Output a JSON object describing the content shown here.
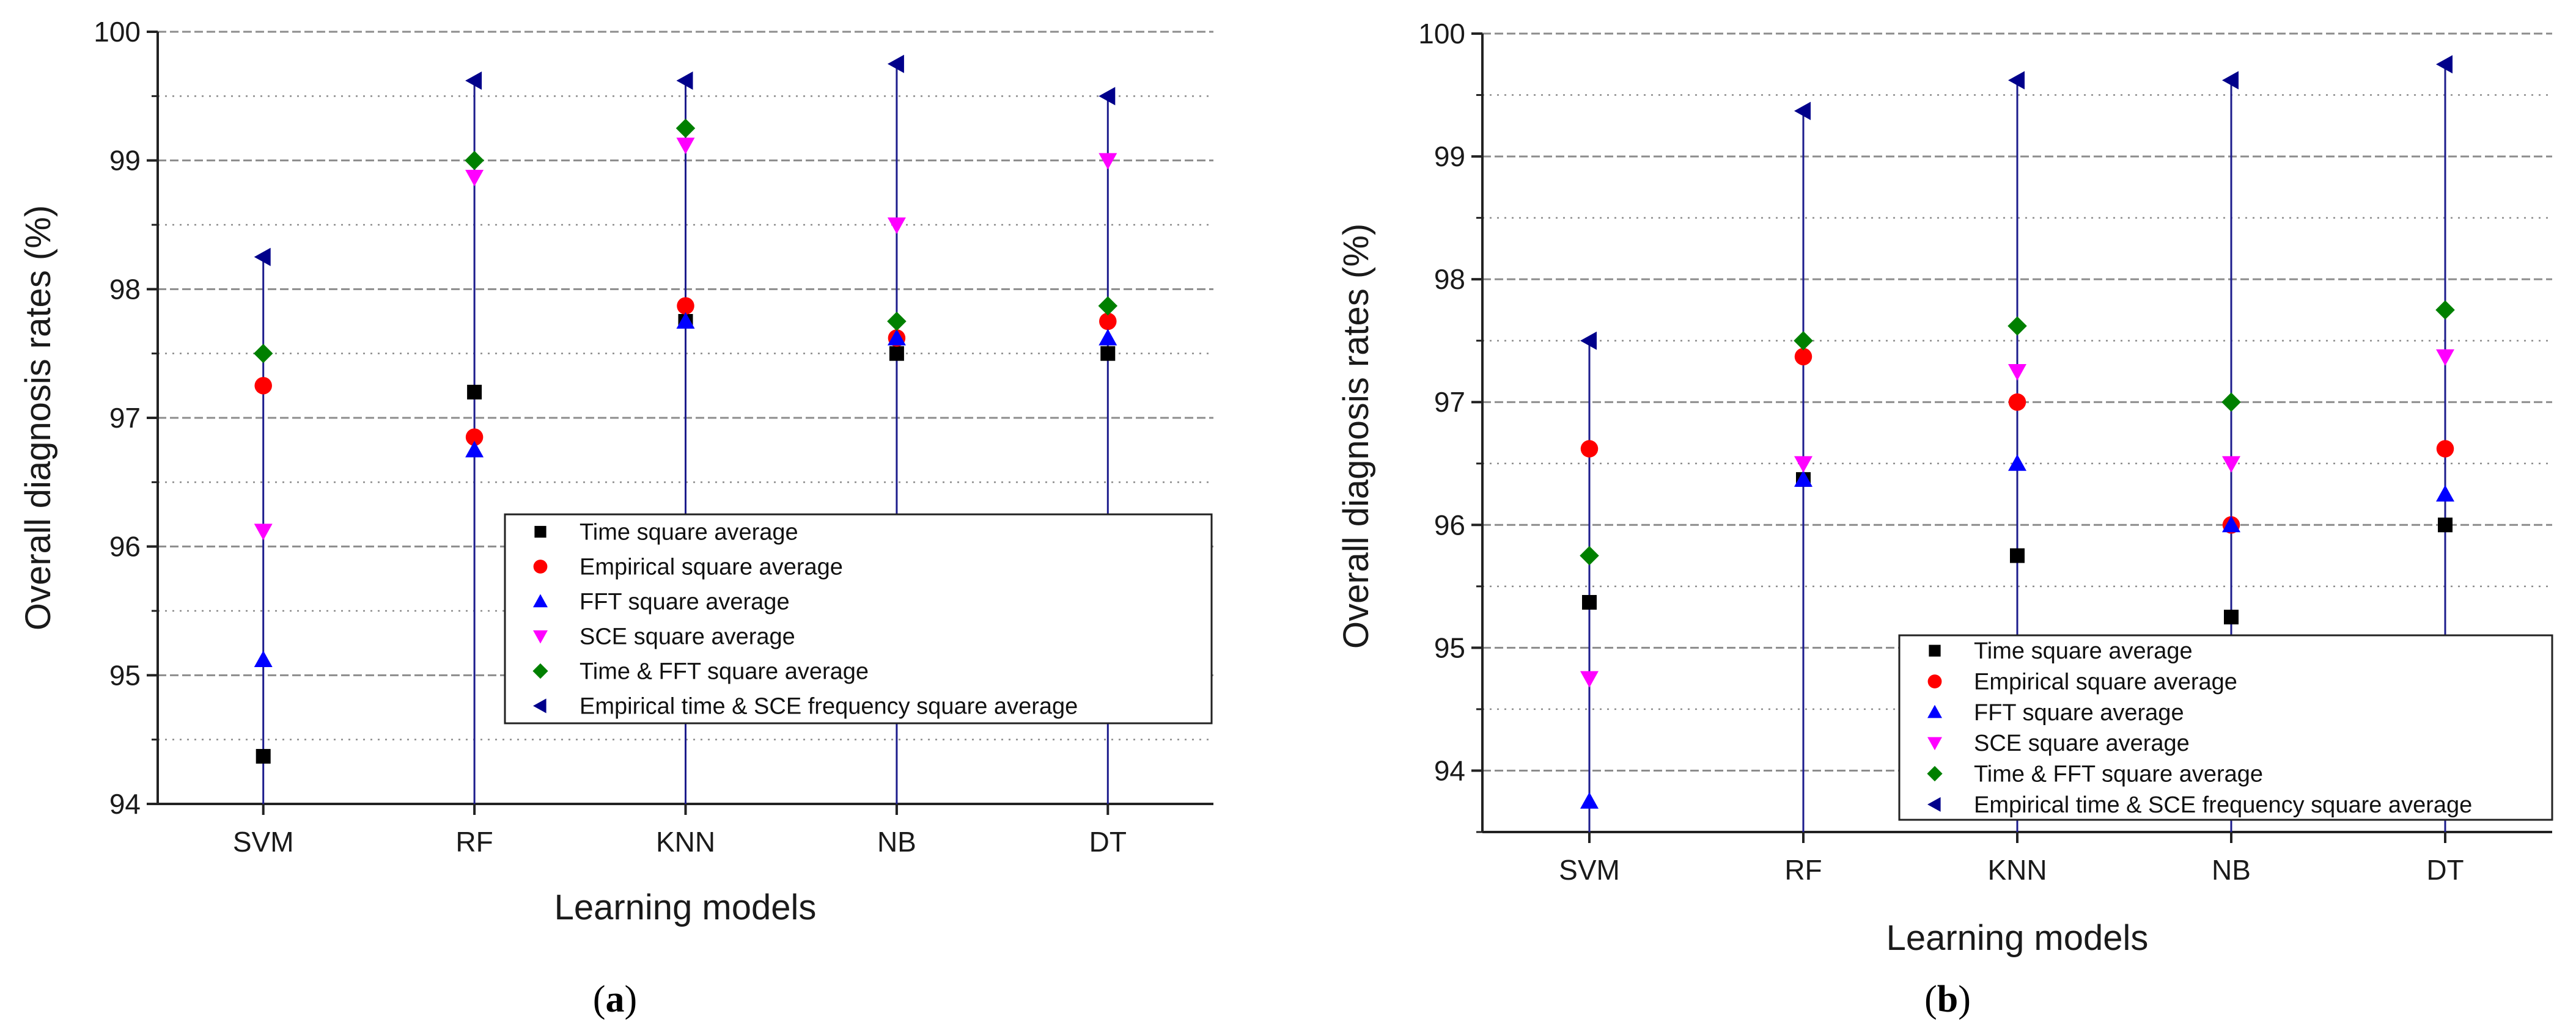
{
  "chart_data": [
    {
      "type": "scatter",
      "panel_label": "a",
      "title": "",
      "xlabel": "Learning models",
      "ylabel": "Overall diagnosis rates (%)",
      "ylim": [
        94,
        100
      ],
      "yticks": [
        94,
        95,
        96,
        97,
        98,
        99,
        100
      ],
      "grid": "dashed-major-dotted-minor",
      "legend_position": "lower-right",
      "categories": [
        "SVM",
        "RF",
        "KNN",
        "NB",
        "DT"
      ],
      "series": [
        {
          "name": "Time square average",
          "marker": "square",
          "color": "#000000",
          "values": [
            94.37,
            97.2,
            97.75,
            97.5,
            97.5
          ]
        },
        {
          "name": "Empirical square average",
          "marker": "circle",
          "color": "#ff0000",
          "values": [
            97.25,
            96.85,
            97.87,
            97.62,
            97.75
          ]
        },
        {
          "name": "FFT square average",
          "marker": "triangle-up",
          "color": "#0000ff",
          "values": [
            95.12,
            96.75,
            97.75,
            97.62,
            97.62
          ]
        },
        {
          "name": "SCE square average",
          "marker": "triangle-down",
          "color": "#ff00ff",
          "values": [
            96.12,
            98.87,
            99.12,
            98.5,
            99.0
          ]
        },
        {
          "name": "Time & FFT square average",
          "marker": "diamond",
          "color": "#008000",
          "values": [
            97.5,
            99.0,
            99.25,
            97.75,
            97.87
          ]
        },
        {
          "name": "Empirical time & SCE frequency square average",
          "marker": "triangle-left",
          "color": "#00008b",
          "values": [
            98.25,
            99.62,
            99.62,
            99.75,
            99.5
          ]
        }
      ]
    },
    {
      "type": "scatter",
      "panel_label": "b",
      "title": "",
      "xlabel": "Learning models",
      "ylabel": "Overall diagnosis rates (%)",
      "ylim": [
        93.5,
        100
      ],
      "yticks": [
        94,
        95,
        96,
        97,
        98,
        99,
        100
      ],
      "grid": "dashed-major-dotted-minor",
      "legend_position": "lower-right",
      "categories": [
        "SVM",
        "RF",
        "KNN",
        "NB",
        "DT"
      ],
      "series": [
        {
          "name": "Time square average",
          "marker": "square",
          "color": "#000000",
          "values": [
            95.37,
            96.37,
            95.75,
            95.25,
            96.0
          ]
        },
        {
          "name": "Empirical square average",
          "marker": "circle",
          "color": "#ff0000",
          "values": [
            96.62,
            97.37,
            97.0,
            96.0,
            96.62
          ]
        },
        {
          "name": "FFT square average",
          "marker": "triangle-up",
          "color": "#0000ff",
          "values": [
            93.75,
            96.37,
            96.5,
            96.0,
            96.25
          ]
        },
        {
          "name": "SCE square average",
          "marker": "triangle-down",
          "color": "#ff00ff",
          "values": [
            94.75,
            96.5,
            97.25,
            96.5,
            97.37
          ]
        },
        {
          "name": "Time & FFT square average",
          "marker": "diamond",
          "color": "#008000",
          "values": [
            95.75,
            97.5,
            97.62,
            97.0,
            97.75
          ]
        },
        {
          "name": "Empirical time & SCE frequency square average",
          "marker": "triangle-left",
          "color": "#00008b",
          "values": [
            97.5,
            99.37,
            99.62,
            99.62,
            99.75
          ]
        }
      ]
    }
  ],
  "captions": {
    "a": "a",
    "b": "b"
  },
  "style": {
    "stem_color": "#1c1c8c",
    "axis_color": "#222222",
    "grid_color": "#8c8c8c"
  }
}
